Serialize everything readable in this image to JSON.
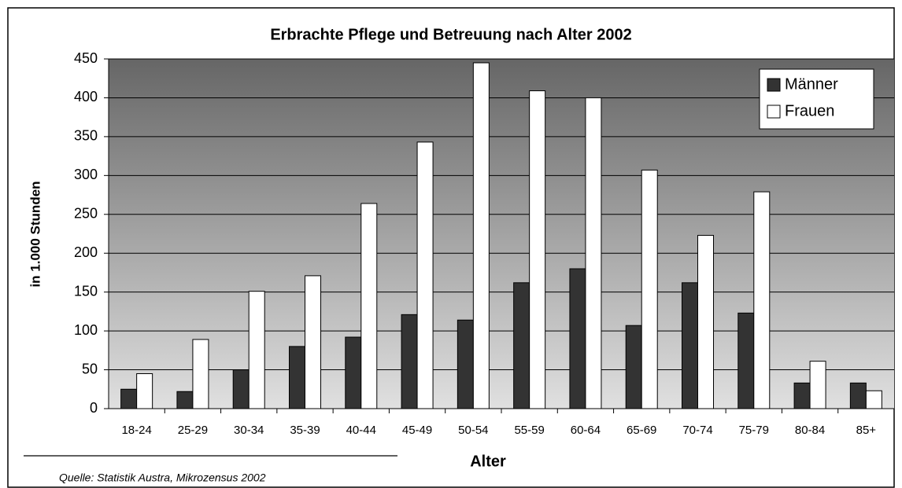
{
  "chart_data": {
    "type": "bar",
    "title": "Erbrachte Pflege und Betreuung nach Alter 2002",
    "x_label": "Alter",
    "y_label": "in 1.000 Stunden",
    "source": "Quelle: Statistik Austra, Mikrozensus 2002",
    "categories": [
      "18-24",
      "25-29",
      "30-34",
      "35-39",
      "40-44",
      "45-49",
      "50-54",
      "55-59",
      "60-64",
      "65-69",
      "70-74",
      "75-79",
      "80-84",
      "85+"
    ],
    "series": [
      {
        "name": "Männer",
        "color": "#333333",
        "values": [
          25,
          22,
          50,
          80,
          92,
          121,
          114,
          162,
          180,
          107,
          162,
          123,
          33,
          33
        ]
      },
      {
        "name": "Frauen",
        "color": "#ffffff",
        "values": [
          45,
          89,
          151,
          171,
          264,
          343,
          445,
          409,
          400,
          307,
          223,
          279,
          61,
          23
        ]
      }
    ],
    "ylim": [
      0,
      450
    ],
    "yticks": [
      0,
      50,
      100,
      150,
      200,
      250,
      300,
      350,
      400,
      450
    ],
    "grid": true,
    "legend": "top-right"
  }
}
